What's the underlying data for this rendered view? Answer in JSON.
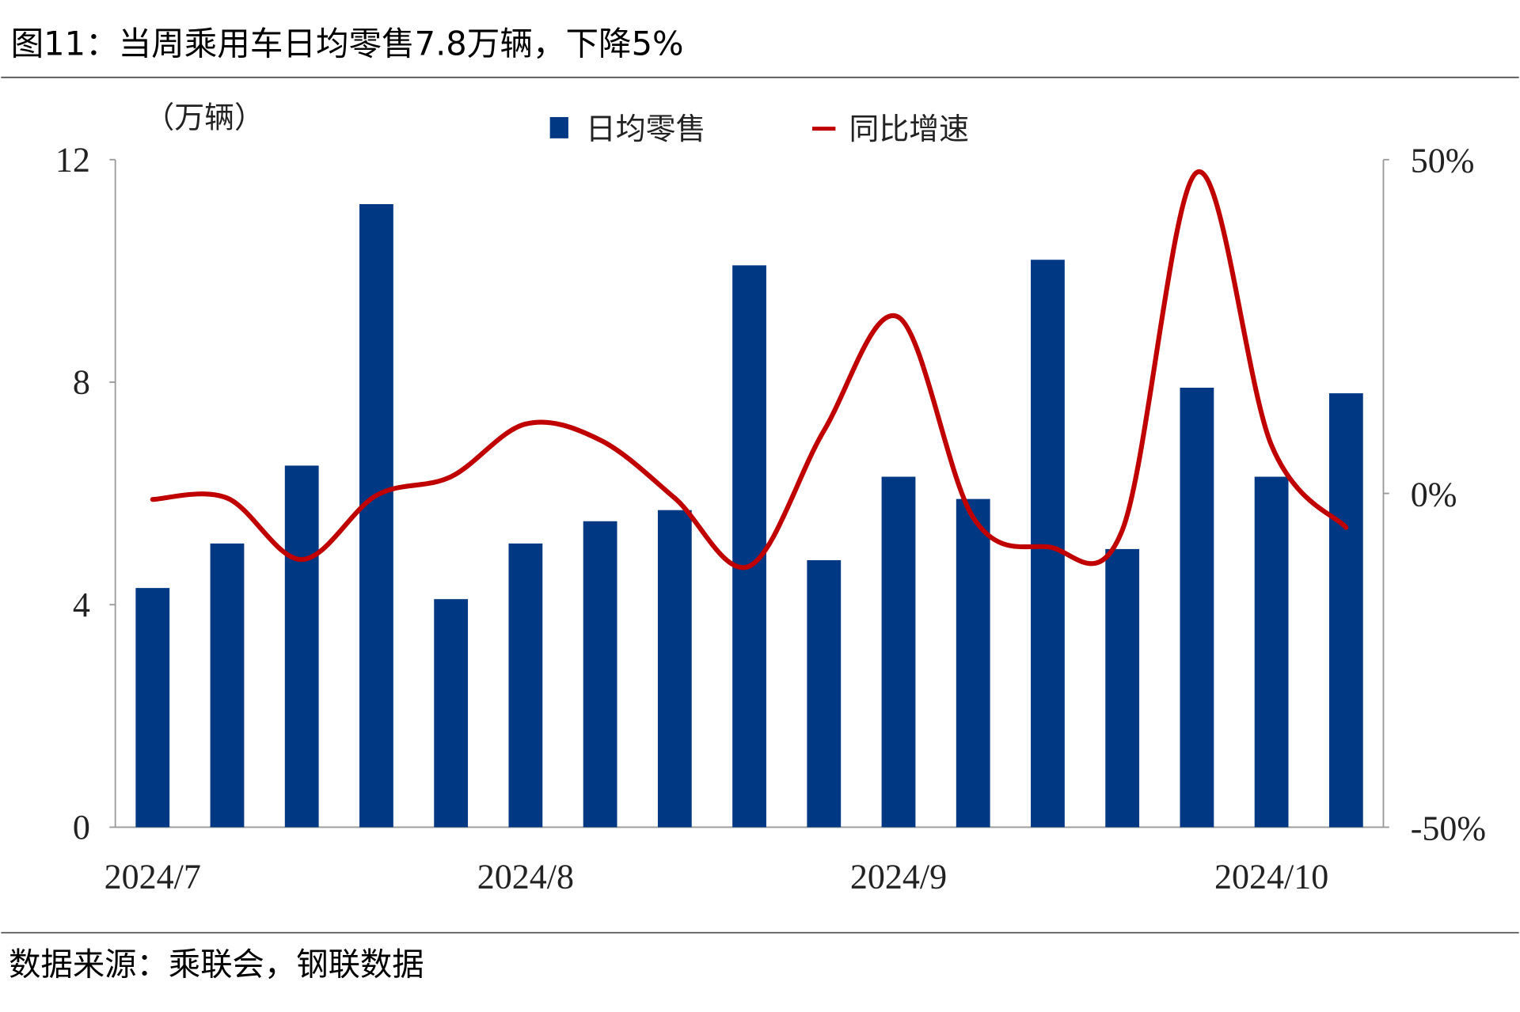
{
  "title": "图11：当周乘用车日均零售7.8万辆，下降5%",
  "source": "数据来源：乘联会，钢联数据",
  "colors": {
    "bar": "#003884",
    "line": "#C00000",
    "axis": "#999999"
  },
  "chart_data": {
    "type": "bar+line",
    "title": "当周乘用车日均零售7.8万辆，下降5%",
    "y_unit_label": "（万辆）",
    "ylim": [
      0,
      12
    ],
    "yticks": [
      "0",
      "4",
      "8",
      "12"
    ],
    "y2lim": [
      -50,
      50
    ],
    "y2ticks": [
      "-50%",
      "0%",
      "50%"
    ],
    "xtick_labels": [
      {
        "label": "2024/7",
        "index": 0
      },
      {
        "label": "2024/8",
        "index": 5
      },
      {
        "label": "2024/9",
        "index": 10
      },
      {
        "label": "2024/10",
        "index": 15
      }
    ],
    "legend": [
      "日均零售",
      "同比增速"
    ],
    "legend_position": "top-center",
    "series": [
      {
        "name": "日均零售",
        "type": "bar",
        "axis": "left",
        "values": [
          4.3,
          5.1,
          6.5,
          11.2,
          4.1,
          5.1,
          5.5,
          5.7,
          10.1,
          4.8,
          6.3,
          5.9,
          10.2,
          5.0,
          7.9,
          6.3,
          7.8
        ]
      },
      {
        "name": "同比增速",
        "type": "line",
        "axis": "right",
        "unit": "%",
        "values": [
          -0.9,
          -0.7,
          -9.9,
          -0.3,
          2.5,
          10.4,
          8.0,
          -0.7,
          -10.9,
          9.4,
          26.4,
          -3.6,
          -8.0,
          -5.5,
          48.1,
          7.2,
          -5.1
        ]
      }
    ]
  }
}
